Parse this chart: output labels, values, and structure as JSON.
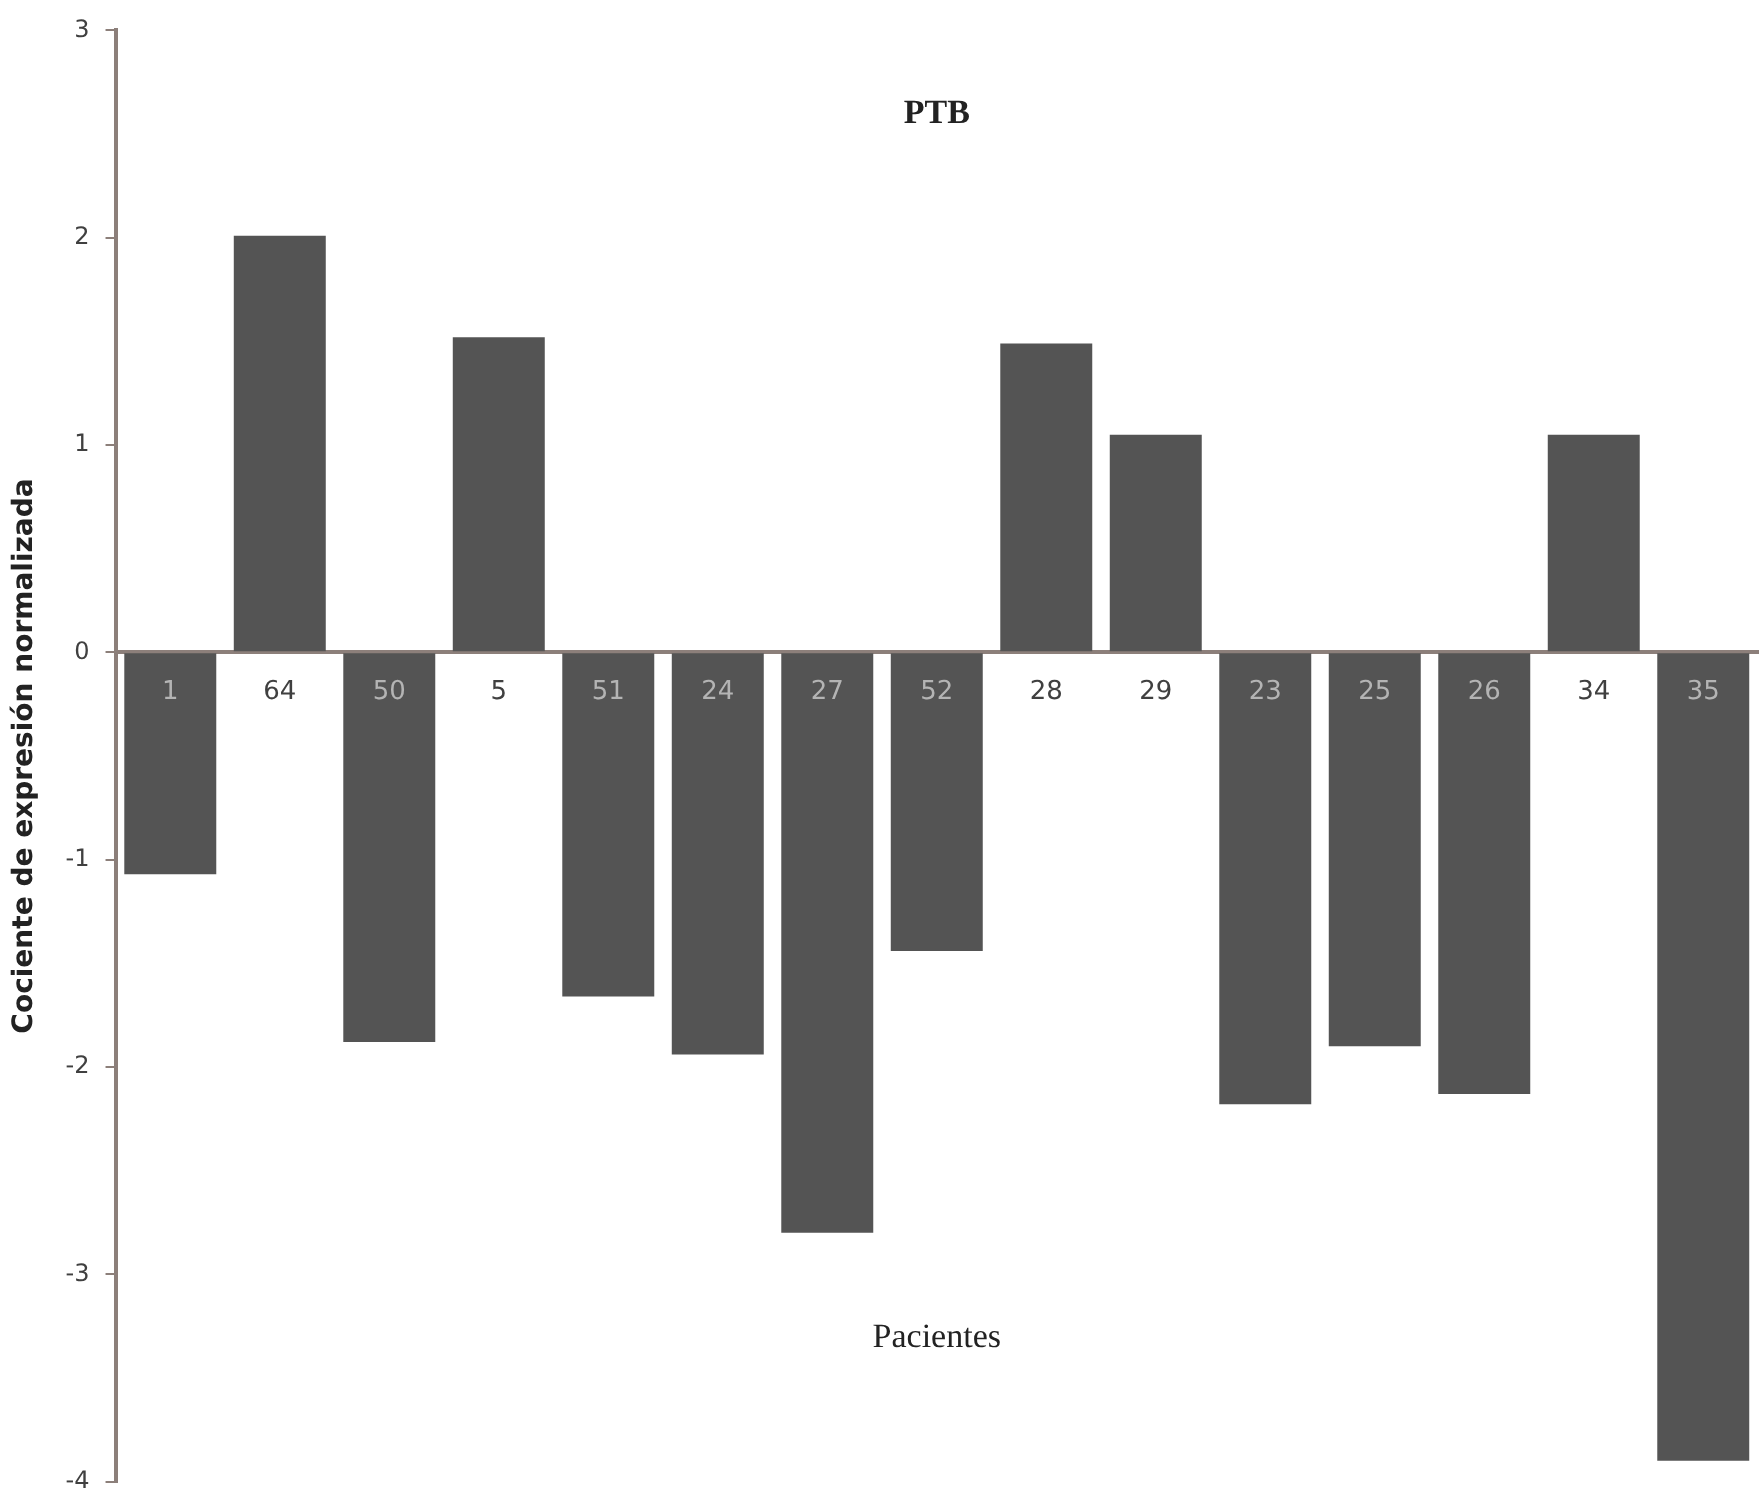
{
  "chart_data": {
    "type": "bar",
    "title": "PTB",
    "xlabel": "Pacientes",
    "ylabel": "Cociente de expresión normalizada",
    "categories": [
      "1",
      "64",
      "50",
      "5",
      "51",
      "24",
      "27",
      "52",
      "28",
      "29",
      "23",
      "25",
      "26",
      "34",
      "35"
    ],
    "values": [
      -1.07,
      2.01,
      -1.88,
      1.52,
      -1.66,
      -1.94,
      -2.8,
      -1.44,
      1.49,
      1.05,
      -2.18,
      -1.9,
      -2.13,
      1.05,
      -3.9
    ],
    "color": "#545454",
    "ylim": [
      -4,
      3
    ],
    "yticks": [
      -4,
      -3,
      -2,
      -1,
      0,
      1,
      2,
      3
    ],
    "grid": false,
    "legend": false
  }
}
